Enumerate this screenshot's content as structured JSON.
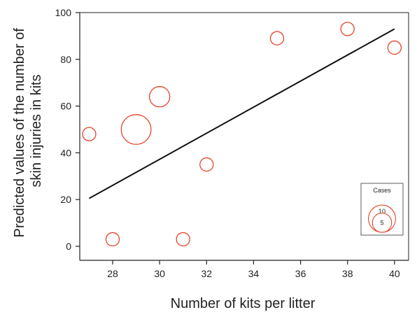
{
  "chart_data": {
    "type": "scatter",
    "title": "",
    "xlabel": "Number of kits per litter",
    "ylabel_lines": [
      "Predicted values of the number of",
      "skin injuries in kits"
    ],
    "xlim": [
      26.6,
      40.6
    ],
    "ylim": [
      -6,
      100
    ],
    "xticks": [
      28,
      30,
      32,
      34,
      36,
      38,
      40
    ],
    "yticks": [
      0,
      20,
      40,
      60,
      80,
      100
    ],
    "grid": false,
    "marker_color": "#e8432a",
    "line_color": "#111111",
    "points": [
      {
        "x": 27,
        "y": 48,
        "cases": 3
      },
      {
        "x": 28,
        "y": 3,
        "cases": 3
      },
      {
        "x": 29,
        "y": 50,
        "cases": 15
      },
      {
        "x": 30,
        "y": 64,
        "cases": 7
      },
      {
        "x": 31,
        "y": 3,
        "cases": 3
      },
      {
        "x": 32,
        "y": 35,
        "cases": 3
      },
      {
        "x": 35,
        "y": 89,
        "cases": 3
      },
      {
        "x": 38,
        "y": 93,
        "cases": 3
      },
      {
        "x": 40,
        "y": 85,
        "cases": 3
      }
    ],
    "trend_line": {
      "x": [
        27,
        40
      ],
      "y": [
        20.5,
        93
      ]
    },
    "legend": {
      "title": "Cases",
      "placement": "bottom-right",
      "sizes": [
        10,
        5
      ]
    }
  }
}
